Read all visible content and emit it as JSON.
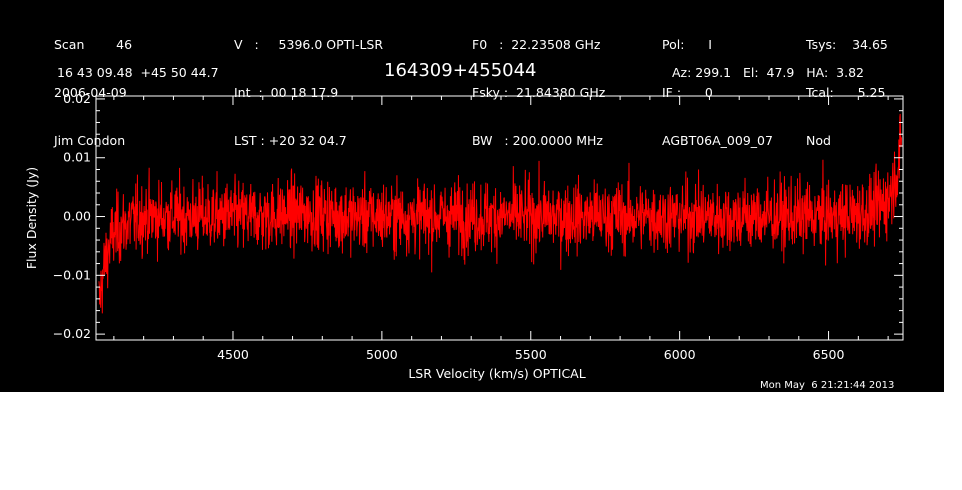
{
  "header": {
    "col1": [
      "Scan        46",
      "2006-04-09",
      "Jim Condon"
    ],
    "col2": [
      "V   :     5396.0 OPTI-LSR",
      "Int  :  00 18 17.9",
      "LST : +20 32 04.7"
    ],
    "col3": [
      "F0   :  22.23508 GHz",
      "Fsky :  21.84380 GHz",
      "BW   : 200.0000 MHz"
    ],
    "col4": [
      "Pol:      I",
      "IF :      0",
      "AGBT06A_009_07"
    ],
    "col5": [
      "Tsys:    34.65",
      "Tcal:      5.25",
      "Nod"
    ]
  },
  "coords": "16 43 09.48  +45 50 44.7",
  "source": "164309+455044",
  "pointing": "Az: 299.1   El:  47.9   HA:  3.82",
  "timestamp": "Mon May  6 21:21:44 2013",
  "colors": {
    "background": "#000000",
    "axes": "#ffffff",
    "trace": "#ff0000"
  },
  "chart_data": {
    "type": "line",
    "title": "",
    "xlabel": "LSR Velocity (km/s) OPTICAL",
    "ylabel": "Flux Density (Jy)",
    "xlim": [
      4040,
      6750
    ],
    "ylim": [
      -0.021,
      0.0205
    ],
    "xticks": [
      4500,
      5000,
      5500,
      6000,
      6500
    ],
    "xtick_labels": [
      "4500",
      "5000",
      "5500",
      "6000",
      "6500"
    ],
    "yticks": [
      -0.02,
      -0.01,
      0.0,
      0.01,
      0.02
    ],
    "ytick_labels": [
      "−0.02",
      "−0.01",
      "0.00",
      "0.01",
      "0.02"
    ],
    "grid": false,
    "series": [
      {
        "color": "#ff0000",
        "x": [
          4050,
          4060,
          4070,
          4080,
          4090,
          4100,
          4120,
          4150,
          4200,
          4300,
          4400,
          4500,
          4600,
          4700,
          4800,
          4900,
          5000,
          5100,
          5200,
          5300,
          5400,
          5500,
          5600,
          5700,
          5800,
          5900,
          6000,
          6100,
          6200,
          6300,
          6400,
          6500,
          6550,
          6600,
          6650,
          6680,
          6700,
          6720,
          6735,
          6745
        ],
        "y": [
          -0.015,
          -0.011,
          -0.008,
          -0.006,
          -0.004,
          -0.003,
          -0.002,
          -0.001,
          0.0,
          0.0,
          0.0,
          0.0,
          0.0,
          0.0005,
          0.0005,
          0.0,
          0.0,
          0.0,
          0.0,
          0.0,
          0.0,
          0.0,
          0.0,
          0.0,
          0.0,
          0.0,
          0.0,
          0.0,
          0.0,
          0.0,
          0.0,
          0.0,
          0.0,
          0.0005,
          0.001,
          0.002,
          0.003,
          0.006,
          0.009,
          0.012
        ],
        "noise_rms": 0.003
      }
    ]
  }
}
